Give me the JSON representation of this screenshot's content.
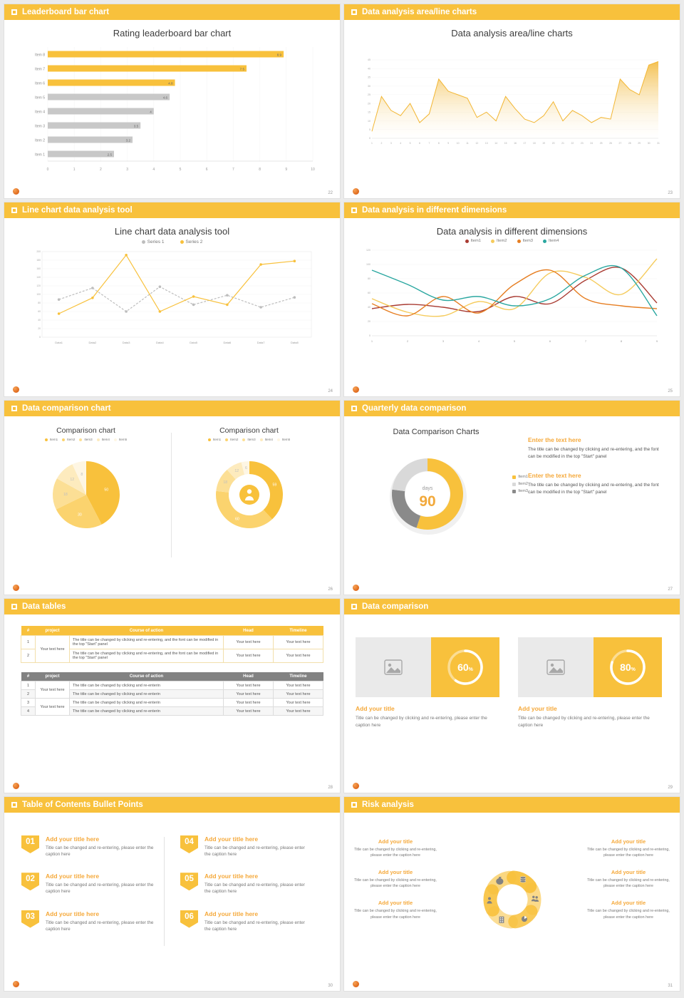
{
  "accent": "#F8C13C",
  "slides": [
    {
      "header": "Leaderboard bar chart",
      "page": "22",
      "title": "Rating leaderboard bar chart",
      "chart": {
        "type": "hbar",
        "xmax": 10,
        "xticks": [
          0,
          1,
          2,
          3,
          4,
          5,
          6,
          7,
          8,
          9,
          10
        ],
        "bar_colors": {
          "yellow": "#F8C13C",
          "gray": "#C8C8C8"
        },
        "items": [
          {
            "label": "Item 8",
            "value": 8.9,
            "color": "yellow"
          },
          {
            "label": "Item 7",
            "value": 7.5,
            "color": "yellow"
          },
          {
            "label": "Item 6",
            "value": 4.8,
            "color": "yellow"
          },
          {
            "label": "Item 5",
            "value": 4.6,
            "color": "gray"
          },
          {
            "label": "Item 4",
            "value": 4,
            "color": "gray"
          },
          {
            "label": "Item 3",
            "value": 3.5,
            "color": "gray"
          },
          {
            "label": "Item 2",
            "value": 3.2,
            "color": "gray"
          },
          {
            "label": "Item 1",
            "value": 2.5,
            "color": "gray"
          }
        ]
      }
    },
    {
      "header": "Data analysis area/line charts",
      "page": "23",
      "title": "Data analysis area/line charts",
      "chart": {
        "type": "area",
        "ymax": 45,
        "ystep": 5,
        "line_color": "#F2B633",
        "x_labels": [
          "1",
          "2",
          "3",
          "4",
          "5",
          "6",
          "7",
          "8",
          "9",
          "10",
          "11",
          "12",
          "13",
          "14",
          "15",
          "16",
          "17",
          "18",
          "19",
          "20",
          "21",
          "22",
          "23",
          "24",
          "25",
          "26",
          "27",
          "28",
          "29",
          "30",
          "31"
        ],
        "values": [
          4,
          24,
          16,
          13,
          20,
          9,
          14,
          34,
          27,
          25,
          23,
          12,
          15,
          10,
          24,
          17,
          11,
          9,
          13,
          21,
          10,
          16,
          13,
          9,
          12,
          11,
          34,
          28,
          25,
          42,
          44
        ]
      }
    },
    {
      "header": "Line chart data analysis tool",
      "page": "24",
      "title": "Line chart data analysis tool",
      "chart": {
        "type": "line",
        "ymax": 200,
        "ystep": 20,
        "categories": [
          "Data1",
          "Data2",
          "Data3",
          "Data4",
          "Data5",
          "Data6",
          "Data7",
          "Data8"
        ],
        "series": [
          {
            "name": "Series 1",
            "color": "#BDBDBD",
            "dashed": true,
            "values": [
              88,
              115,
              60,
              118,
              76,
              98,
              70,
              93
            ]
          },
          {
            "name": "Series 2",
            "color": "#F8C13C",
            "dashed": false,
            "values": [
              55,
              92,
              192,
              60,
              95,
              76,
              170,
              178
            ]
          }
        ]
      }
    },
    {
      "header": "Data analysis in different dimensions",
      "page": "25",
      "title": "Data analysis in different dimensions",
      "chart": {
        "type": "multiline",
        "ymax": 120,
        "ystep": 20,
        "x_labels": [
          "1",
          "2",
          "3",
          "4",
          "5",
          "6",
          "7",
          "8",
          "9"
        ],
        "series": [
          {
            "name": "Item1",
            "color": "#A93B32",
            "values": [
              38,
              44,
              40,
              34,
              55,
              45,
              78,
              95,
              46
            ]
          },
          {
            "name": "Item2",
            "color": "#F5CB5C",
            "values": [
              52,
              33,
              28,
              48,
              38,
              88,
              82,
              58,
              108
            ]
          },
          {
            "name": "Item3",
            "color": "#E67E22",
            "values": [
              45,
              28,
              55,
              32,
              72,
              92,
              52,
              42,
              38
            ]
          },
          {
            "name": "Item4",
            "color": "#2AA7A0",
            "values": [
              92,
              72,
              50,
              55,
              42,
              52,
              85,
              95,
              28
            ]
          }
        ]
      }
    },
    {
      "header": "Data comparison chart",
      "page": "26",
      "pies": [
        {
          "title": "Comparison chart",
          "type": "pie",
          "legend": [
            "Item1",
            "Item2",
            "Item3",
            "Item4",
            "Item5"
          ],
          "colors": [
            "#F8C13C",
            "#FBD36E",
            "#FCDF95",
            "#FDEBBE",
            "#FEF6E3"
          ],
          "values": [
            50,
            30,
            18,
            12,
            8
          ]
        },
        {
          "title": "Comparison chart",
          "type": "pie",
          "inner": 29,
          "center_icon": "person",
          "legend": [
            "Item1",
            "Item2",
            "Item3",
            "Item4",
            "Item5"
          ],
          "colors": [
            "#F8C13C",
            "#FBD36E",
            "#FCDF95",
            "#FDEBBE",
            "#FEF6E3"
          ],
          "values": [
            59,
            60,
            18,
            12,
            6
          ]
        }
      ]
    },
    {
      "header": "Quarterly data comparison",
      "page": "27",
      "title": "Data Comparison Charts",
      "donut": {
        "type": "donut",
        "values": [
          55,
          22,
          23
        ],
        "colors": [
          "#F8C13C",
          "#8A8A8A",
          "#D9D9D9"
        ],
        "legend": [
          "Item1",
          "Item2",
          "Item3"
        ],
        "legend_colors": [
          "#F8C13C",
          "#D9D9D9",
          "#8A8A8A"
        ],
        "center_label": "days",
        "center_value": "90"
      },
      "blocks": [
        {
          "title": "Enter the text here",
          "body": "The title can be changed by clicking and re-entering, and the font can be modified in the top \"Start\" panel"
        },
        {
          "title": "Enter the text here",
          "body": "The title can be changed by clicking and re-entering, and the font can be modified in the top \"Start\" panel"
        }
      ]
    },
    {
      "header": "Data tables",
      "page": "28",
      "headers": [
        "#",
        "project",
        "Course of action",
        "Head",
        "Timeline"
      ],
      "table1": {
        "project": "Your text here",
        "rows": [
          {
            "num": "1",
            "course": "The title can be changed by clicking and re-entering, and the font can be modified in the top \"Start\" panel",
            "head": "Your text here",
            "timeline": "Your text here"
          },
          {
            "num": "2",
            "course": "The title can be changed by clicking and re-entering, and the font can be modified in the top \"Start\" panel",
            "head": "Your text here",
            "timeline": "Your text here"
          }
        ]
      },
      "table2": {
        "projects": [
          "Your text here",
          "Your text here"
        ],
        "rows": [
          {
            "num": "1",
            "course": "The title can be changed by clicking and re-enterin",
            "head": "Your text here",
            "timeline": "Your text here"
          },
          {
            "num": "2",
            "course": "The title can be changed by clicking and re-enterin",
            "head": "Your text here",
            "timeline": "Your text here"
          },
          {
            "num": "3",
            "course": "The title can be changed by clicking and re-enterin",
            "head": "Your text here",
            "timeline": "Your text here"
          },
          {
            "num": "4",
            "course": "The title can be changed by clicking and re-enterin",
            "head": "Your text here",
            "timeline": "Your text here"
          }
        ]
      }
    },
    {
      "header": "Data comparison",
      "page": "29",
      "cards": [
        {
          "ring": {
            "type": "progress",
            "percent": 60
          },
          "title": "Add your title",
          "caption": "Title can be changed by clicking and re-entering, please enter the caption here"
        },
        {
          "ring": {
            "type": "progress",
            "percent": 80
          },
          "title": "Add your title",
          "caption": "Title can be changed by clicking and re-entering, please enter the caption here"
        }
      ]
    },
    {
      "header": "Table of Contents Bullet Points",
      "page": "30",
      "items": [
        {
          "num": "01",
          "title": "Add your title here",
          "caption": "Title can be changed and re-entering, please enter the caption here"
        },
        {
          "num": "02",
          "title": "Add your title here",
          "caption": "Title can be changed and re-entering, please enter the caption here"
        },
        {
          "num": "03",
          "title": "Add your title here",
          "caption": "Title can be changed and re-entering, please enter the caption here"
        },
        {
          "num": "04",
          "title": "Add your title here",
          "caption": "Title can be changed and re-entering, please enter the caption here"
        },
        {
          "num": "05",
          "title": "Add your title here",
          "caption": "Title can be changed and re-entering, please enter the caption here"
        },
        {
          "num": "06",
          "title": "Add your title here",
          "caption": "Title can be changed and re-entering, please enter the caption here"
        }
      ]
    },
    {
      "header": "Risk analysis",
      "page": "31",
      "wheel": {
        "type": "pinwheel",
        "icons": [
          "coins",
          "people",
          "pie-chart",
          "building",
          "person",
          "money-bag"
        ]
      },
      "left": [
        {
          "title": "Add your title",
          "caption": "Title can be changed by clicking and re-entering, please enter the caption here"
        },
        {
          "title": "Add your title",
          "caption": "Title can be changed by clicking and re-entering, please enter the caption here"
        },
        {
          "title": "Add your title",
          "caption": "Title can be changed by clicking and re-entering, please enter the caption here"
        }
      ],
      "right": [
        {
          "title": "Add your title",
          "caption": "Title can be changed by clicking and re-entering, please enter the caption here"
        },
        {
          "title": "Add your title",
          "caption": "Title can be changed by clicking and re-entering, please enter the caption here"
        },
        {
          "title": "Add your title",
          "caption": "Title can be changed by clicking and re-entering, please enter the caption here"
        }
      ]
    }
  ]
}
